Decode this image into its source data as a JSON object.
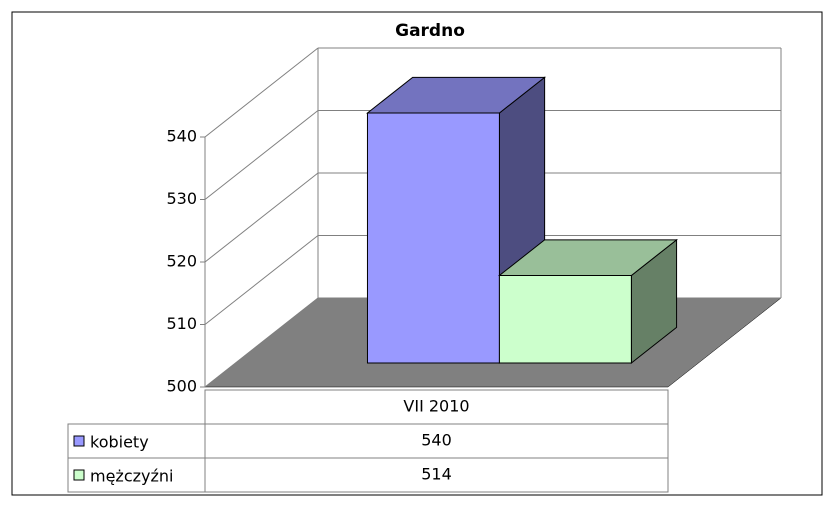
{
  "chart_data": {
    "type": "bar3d",
    "title": "Gardno",
    "categories": [
      "VII 2010"
    ],
    "series": [
      {
        "name": "kobiety",
        "color": "#9999ff",
        "values": [
          540
        ]
      },
      {
        "name": "mężczyźni",
        "color": "#ccffcc",
        "values": [
          514
        ]
      }
    ],
    "ylim": [
      500,
      540
    ],
    "yticks": [
      500,
      510,
      520,
      530,
      540
    ],
    "grid": true,
    "data_table": true
  }
}
